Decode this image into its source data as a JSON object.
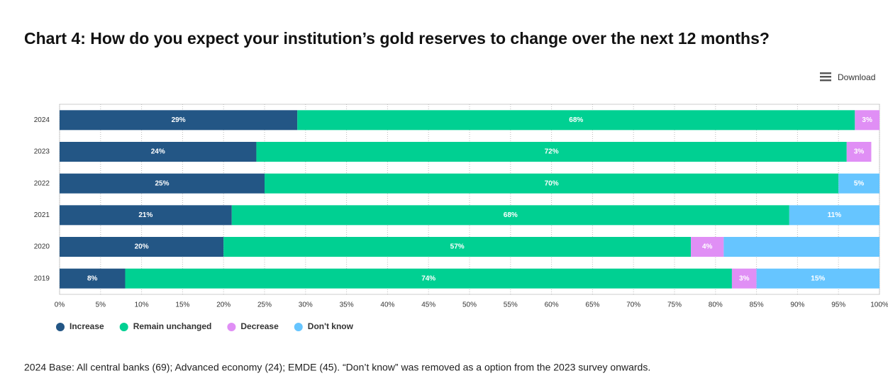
{
  "chart_data": {
    "type": "stacked-bar-horizontal",
    "title": "Chart 4: How do you expect your institution’s gold reserves to change over the next 12 months?",
    "download": "Download",
    "categories": [
      "2024",
      "2023",
      "2022",
      "2021",
      "2020",
      "2019"
    ],
    "series": [
      {
        "name": "Increase",
        "color": "#235685",
        "values": [
          29,
          24,
          25,
          21,
          20,
          8
        ],
        "value_labels": [
          "29%",
          "24%",
          "25%",
          "21%",
          "20%",
          "8%"
        ]
      },
      {
        "name": "Remain unchanged",
        "color": "#00d092",
        "values": [
          68,
          72,
          70,
          68,
          57,
          74
        ],
        "value_labels": [
          "68%",
          "72%",
          "70%",
          "68%",
          "57%",
          "74%"
        ]
      },
      {
        "name": "Decrease",
        "color": "#e08ff5",
        "values": [
          3,
          3,
          null,
          null,
          4,
          3
        ],
        "value_labels": [
          "3%",
          "3%",
          null,
          null,
          "4%",
          "3%"
        ]
      },
      {
        "name": "Don't know",
        "color": "#66c5ff",
        "values": [
          null,
          null,
          5,
          11,
          19,
          15
        ],
        "value_labels": [
          null,
          null,
          "5%",
          "11%",
          null,
          "15%"
        ]
      }
    ],
    "xlim": [
      0,
      100
    ],
    "xticks": [
      {
        "value": 0,
        "label": "0%"
      },
      {
        "value": 5,
        "label": "5%"
      },
      {
        "value": 10,
        "label": "10%"
      },
      {
        "value": 15,
        "label": "15%"
      },
      {
        "value": 20,
        "label": "20%"
      },
      {
        "value": 25,
        "label": "25%"
      },
      {
        "value": 30,
        "label": "30%"
      },
      {
        "value": 35,
        "label": "35%"
      },
      {
        "value": 40,
        "label": "40%"
      },
      {
        "value": 45,
        "label": "45%"
      },
      {
        "value": 50,
        "label": "50%"
      },
      {
        "value": 55,
        "label": "55%"
      },
      {
        "value": 60,
        "label": "60%"
      },
      {
        "value": 65,
        "label": "65%"
      },
      {
        "value": 70,
        "label": "70%"
      },
      {
        "value": 75,
        "label": "75%"
      },
      {
        "value": 80,
        "label": "80%"
      },
      {
        "value": 85,
        "label": "85%"
      },
      {
        "value": 90,
        "label": "90%"
      },
      {
        "value": 95,
        "label": "95%"
      },
      {
        "value": 100,
        "label": "100%"
      }
    ],
    "grid": true,
    "legend": "bottom-left",
    "footnote": "2024 Base: All central banks (69); Advanced economy (24); EMDE (45). “Don’t know” was removed as a option from the 2023 survey onwards."
  }
}
